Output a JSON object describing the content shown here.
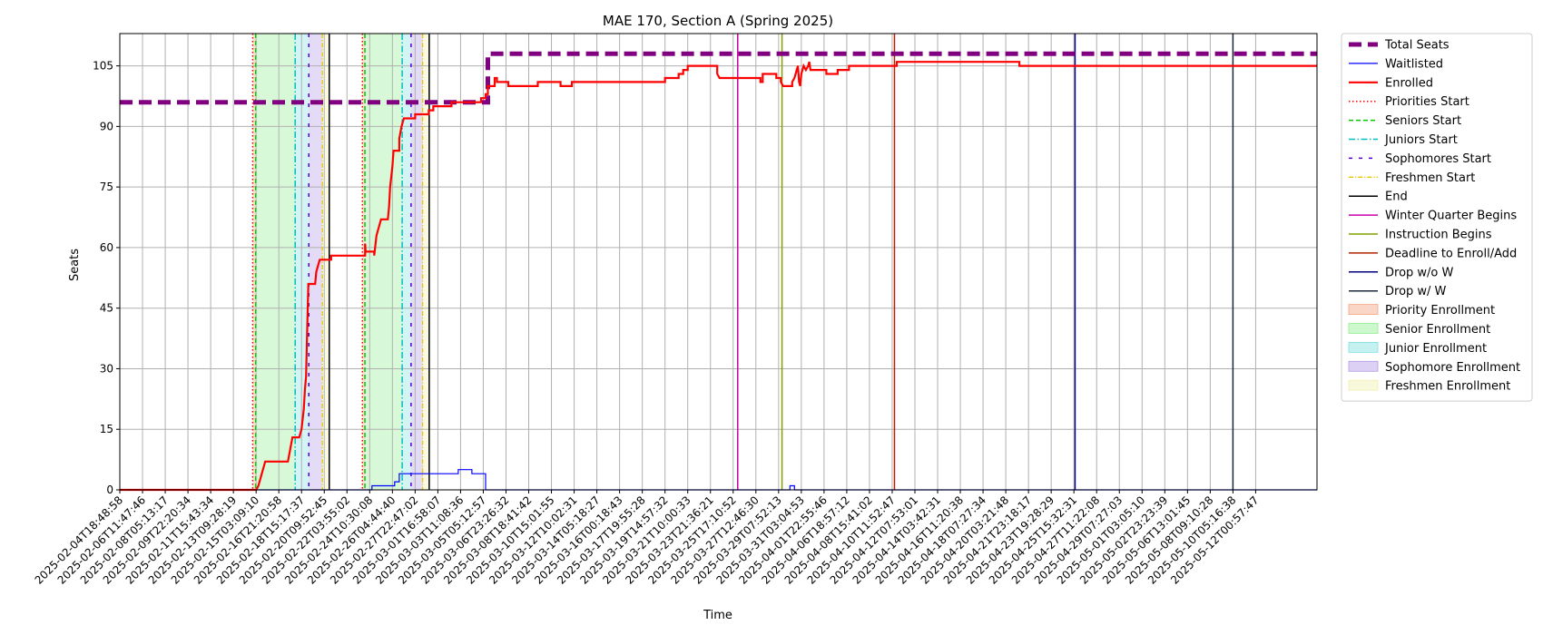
{
  "chart_data": {
    "type": "line",
    "title": "MAE 170, Section A (Spring 2025)",
    "xlabel": "Time",
    "ylabel": "Seats",
    "grid": true,
    "legend_position": "outside-right",
    "x_ticks": [
      "2025-02-04T18:48:58",
      "2025-02-06T11:47:46",
      "2025-02-08T05:13:17",
      "2025-02-09T22:20:34",
      "2025-02-11T15:43:34",
      "2025-02-13T09:28:19",
      "2025-02-15T03:09:10",
      "2025-02-16T21:20:58",
      "2025-02-18T15:17:37",
      "2025-02-20T09:52:45",
      "2025-02-22T03:55:02",
      "2025-02-24T10:30:08",
      "2025-02-26T04:44:40",
      "2025-02-27T22:47:02",
      "2025-03-01T16:58:07",
      "2025-03-03T11:08:36",
      "2025-03-05T05:12:57",
      "2025-03-06T23:26:32",
      "2025-03-08T18:41:42",
      "2025-03-10T15:01:55",
      "2025-03-12T10:02:31",
      "2025-03-14T05:18:27",
      "2025-03-16T00:18:43",
      "2025-03-17T19:55:28",
      "2025-03-19T14:57:32",
      "2025-03-21T10:00:33",
      "2025-03-23T21:36:21",
      "2025-03-25T17:10:52",
      "2025-03-27T12:46:30",
      "2025-03-29T07:52:13",
      "2025-03-31T03:04:53",
      "2025-04-01T22:55:46",
      "2025-04-06T18:57:12",
      "2025-04-08T15:41:02",
      "2025-04-10T11:52:47",
      "2025-04-12T07:53:01",
      "2025-04-14T03:42:31",
      "2025-04-16T11:20:38",
      "2025-04-18T07:27:34",
      "2025-04-20T03:21:48",
      "2025-04-21T23:18:17",
      "2025-04-23T19:28:29",
      "2025-04-25T15:32:31",
      "2025-04-27T11:22:08",
      "2025-04-29T07:27:03",
      "2025-05-01T03:05:10",
      "2025-05-02T23:23:39",
      "2025-05-06T13:01:45",
      "2025-05-08T09:10:28",
      "2025-05-10T05:16:38",
      "2025-05-12T00:57:47"
    ],
    "y_ticks": [
      0,
      15,
      30,
      45,
      60,
      75,
      90,
      105
    ],
    "ylim": [
      0,
      113
    ],
    "xlim_index": [
      0,
      52.7
    ],
    "series": [
      {
        "name": "Total Seats",
        "color": "#800080",
        "style": "dashed-thick",
        "points": [
          [
            0,
            96
          ],
          [
            16,
            96
          ],
          [
            16.2,
            96
          ],
          [
            16.2,
            108
          ],
          [
            52.7,
            108
          ]
        ]
      },
      {
        "name": "Waitlisted",
        "color": "#0000ff",
        "style": "solid-thin",
        "points": [
          [
            0,
            0
          ],
          [
            11.1,
            0
          ],
          [
            11.1,
            1
          ],
          [
            12.1,
            1
          ],
          [
            12.1,
            2
          ],
          [
            12.3,
            2
          ],
          [
            12.3,
            4
          ],
          [
            14.9,
            4
          ],
          [
            14.9,
            5
          ],
          [
            15.5,
            5
          ],
          [
            15.5,
            4
          ],
          [
            16.1,
            4
          ],
          [
            16.1,
            0
          ],
          [
            29.5,
            0
          ],
          [
            29.5,
            1
          ],
          [
            29.7,
            1
          ],
          [
            29.7,
            0
          ],
          [
            52.7,
            0
          ]
        ]
      },
      {
        "name": "Enrolled",
        "color": "#ff0000",
        "style": "solid-thick",
        "points": [
          [
            0,
            0
          ],
          [
            6,
            0
          ],
          [
            6.1,
            1
          ],
          [
            6.2,
            3
          ],
          [
            6.3,
            5
          ],
          [
            6.4,
            7
          ],
          [
            7.4,
            7
          ],
          [
            7.5,
            10
          ],
          [
            7.6,
            13
          ],
          [
            7.9,
            13
          ],
          [
            8,
            15
          ],
          [
            8.1,
            20
          ],
          [
            8.15,
            25
          ],
          [
            8.2,
            28
          ],
          [
            8.25,
            40
          ],
          [
            8.3,
            51
          ],
          [
            8.6,
            51
          ],
          [
            8.65,
            54
          ],
          [
            8.75,
            56
          ],
          [
            8.8,
            57
          ],
          [
            9.3,
            57
          ],
          [
            9.3,
            58
          ],
          [
            10.8,
            58
          ],
          [
            10.8,
            61
          ],
          [
            10.82,
            59
          ],
          [
            11.2,
            59
          ],
          [
            11.2,
            58
          ],
          [
            11.3,
            63
          ],
          [
            11.4,
            65
          ],
          [
            11.5,
            67
          ],
          [
            11.8,
            67
          ],
          [
            11.85,
            70
          ],
          [
            11.9,
            75
          ],
          [
            12,
            80
          ],
          [
            12.05,
            84
          ],
          [
            12.3,
            84
          ],
          [
            12.3,
            87
          ],
          [
            12.4,
            90
          ],
          [
            12.5,
            92
          ],
          [
            13,
            92
          ],
          [
            13,
            93
          ],
          [
            13.6,
            93
          ],
          [
            13.6,
            94
          ],
          [
            13.8,
            94
          ],
          [
            13.8,
            95
          ],
          [
            14.6,
            95
          ],
          [
            14.6,
            96
          ],
          [
            15.9,
            96
          ],
          [
            15.9,
            97
          ],
          [
            16.1,
            97
          ],
          [
            16.1,
            98
          ],
          [
            16.2,
            98
          ],
          [
            16.2,
            100
          ],
          [
            16.5,
            100
          ],
          [
            16.5,
            102
          ],
          [
            16.6,
            102
          ],
          [
            16.6,
            101
          ],
          [
            17.1,
            101
          ],
          [
            17.1,
            100
          ],
          [
            18.4,
            100
          ],
          [
            18.4,
            101
          ],
          [
            19.4,
            101
          ],
          [
            19.4,
            100
          ],
          [
            19.9,
            100
          ],
          [
            19.9,
            101
          ],
          [
            24,
            101
          ],
          [
            24,
            102
          ],
          [
            24.6,
            102
          ],
          [
            24.6,
            103
          ],
          [
            24.8,
            103
          ],
          [
            24.8,
            104
          ],
          [
            25,
            104
          ],
          [
            25,
            105
          ],
          [
            26.3,
            105
          ],
          [
            26.3,
            103
          ],
          [
            26.4,
            102
          ],
          [
            28.2,
            102
          ],
          [
            28.2,
            101
          ],
          [
            28.3,
            101
          ],
          [
            28.3,
            103
          ],
          [
            28.9,
            103
          ],
          [
            28.9,
            102
          ],
          [
            29.1,
            102
          ],
          [
            29.1,
            101
          ],
          [
            29.2,
            100
          ],
          [
            29.6,
            100
          ],
          [
            29.6,
            101
          ],
          [
            29.7,
            102
          ],
          [
            29.8,
            104
          ],
          [
            29.85,
            105
          ],
          [
            29.9,
            101
          ],
          [
            29.95,
            100
          ],
          [
            30,
            103
          ],
          [
            30.1,
            105
          ],
          [
            30.2,
            104
          ],
          [
            30.3,
            105
          ],
          [
            30.35,
            106
          ],
          [
            30.4,
            104
          ],
          [
            31.1,
            104
          ],
          [
            31.1,
            103
          ],
          [
            31.6,
            103
          ],
          [
            31.6,
            104
          ],
          [
            32.1,
            104
          ],
          [
            32.1,
            105
          ],
          [
            34.2,
            105
          ],
          [
            34.2,
            106
          ],
          [
            39.6,
            106
          ],
          [
            39.6,
            105
          ],
          [
            52.7,
            105
          ]
        ]
      }
    ],
    "shaded_regions": [
      {
        "name": "Priority Enrollment",
        "color": "#f4a582",
        "ranges": [
          [
            5.85,
            5.98
          ],
          [
            10.68,
            10.79
          ]
        ]
      },
      {
        "name": "Senior Enrollment",
        "color": "#90ee90",
        "ranges": [
          [
            5.98,
            7.72
          ],
          [
            10.79,
            12.43
          ]
        ]
      },
      {
        "name": "Junior Enrollment",
        "color": "#7fe0e0",
        "ranges": [
          [
            7.72,
            8.32
          ],
          [
            12.43,
            12.82
          ]
        ]
      },
      {
        "name": "Sophomore Enrollment",
        "color": "#b29ae6",
        "ranges": [
          [
            8.32,
            8.92
          ],
          [
            12.82,
            13.33
          ]
        ]
      },
      {
        "name": "Freshmen Enrollment",
        "color": "#f0f0b0",
        "ranges": [
          [
            8.92,
            9.22
          ],
          [
            13.33,
            13.62
          ]
        ]
      }
    ],
    "vertical_markers": [
      {
        "name": "Priorities Start",
        "color": "#ff0000",
        "style": "dotted",
        "x": [
          5.85,
          10.68
        ]
      },
      {
        "name": "Seniors Start",
        "color": "#00cc00",
        "style": "dashed",
        "x": [
          5.98,
          10.79
        ]
      },
      {
        "name": "Juniors Start",
        "color": "#00bfbf",
        "style": "dashdot",
        "x": [
          7.72,
          12.43
        ]
      },
      {
        "name": "Sophomores Start",
        "color": "#5500dd",
        "style": "loose-dash",
        "x": [
          8.32,
          12.82
        ]
      },
      {
        "name": "Freshmen Start",
        "color": "#e6c800",
        "style": "dashdot-thin",
        "x": [
          8.92,
          13.33
        ]
      },
      {
        "name": "End",
        "color": "#000000",
        "style": "solid",
        "x": [
          9.22,
          13.62
        ]
      },
      {
        "name": "Winter Quarter Begins",
        "color": "#cc00aa",
        "style": "solid",
        "x": [
          27.2
        ]
      },
      {
        "name": "Instruction Begins",
        "color": "#80a000",
        "style": "solid",
        "x": [
          29.15
        ]
      },
      {
        "name": "Deadline to Enroll/Add",
        "color": "#b22200",
        "style": "solid",
        "x": [
          34.1
        ]
      },
      {
        "name": "Drop w/o W",
        "color": "#000080",
        "style": "solid",
        "x": [
          42.05
        ]
      },
      {
        "name": "Drop w/ W",
        "color": "#1a2a3a",
        "style": "solid",
        "x": [
          49
        ]
      }
    ],
    "legend": [
      {
        "label": "Total Seats",
        "kind": "line",
        "color": "#800080",
        "style": "dashed-thick"
      },
      {
        "label": "Waitlisted",
        "kind": "line",
        "color": "#0000ff",
        "style": "solid-thin"
      },
      {
        "label": "Enrolled",
        "kind": "line",
        "color": "#ff0000",
        "style": "solid-thick"
      },
      {
        "label": "Priorities Start",
        "kind": "line",
        "color": "#ff0000",
        "style": "dotted"
      },
      {
        "label": "Seniors Start",
        "kind": "line",
        "color": "#00cc00",
        "style": "dashed"
      },
      {
        "label": "Juniors Start",
        "kind": "line",
        "color": "#00bfbf",
        "style": "dashdot"
      },
      {
        "label": "Sophomores Start",
        "kind": "line",
        "color": "#5500dd",
        "style": "loose-dash"
      },
      {
        "label": "Freshmen Start",
        "kind": "line",
        "color": "#e6c800",
        "style": "dashdot-thin"
      },
      {
        "label": "End",
        "kind": "line",
        "color": "#000000",
        "style": "solid"
      },
      {
        "label": "Winter Quarter Begins",
        "kind": "line",
        "color": "#cc00aa",
        "style": "solid"
      },
      {
        "label": "Instruction Begins",
        "kind": "line",
        "color": "#80a000",
        "style": "solid"
      },
      {
        "label": "Deadline to Enroll/Add",
        "kind": "line",
        "color": "#b22200",
        "style": "solid"
      },
      {
        "label": "Drop w/o W",
        "kind": "line",
        "color": "#000080",
        "style": "solid"
      },
      {
        "label": "Drop w/ W",
        "kind": "line",
        "color": "#1a2a3a",
        "style": "solid"
      },
      {
        "label": "Priority Enrollment",
        "kind": "patch",
        "color": "#f4a582"
      },
      {
        "label": "Senior Enrollment",
        "kind": "patch",
        "color": "#90ee90"
      },
      {
        "label": "Junior Enrollment",
        "kind": "patch",
        "color": "#7fe0e0"
      },
      {
        "label": "Sophomore Enrollment",
        "kind": "patch",
        "color": "#b29ae6"
      },
      {
        "label": "Freshmen Enrollment",
        "kind": "patch",
        "color": "#f0f0b0"
      }
    ]
  }
}
